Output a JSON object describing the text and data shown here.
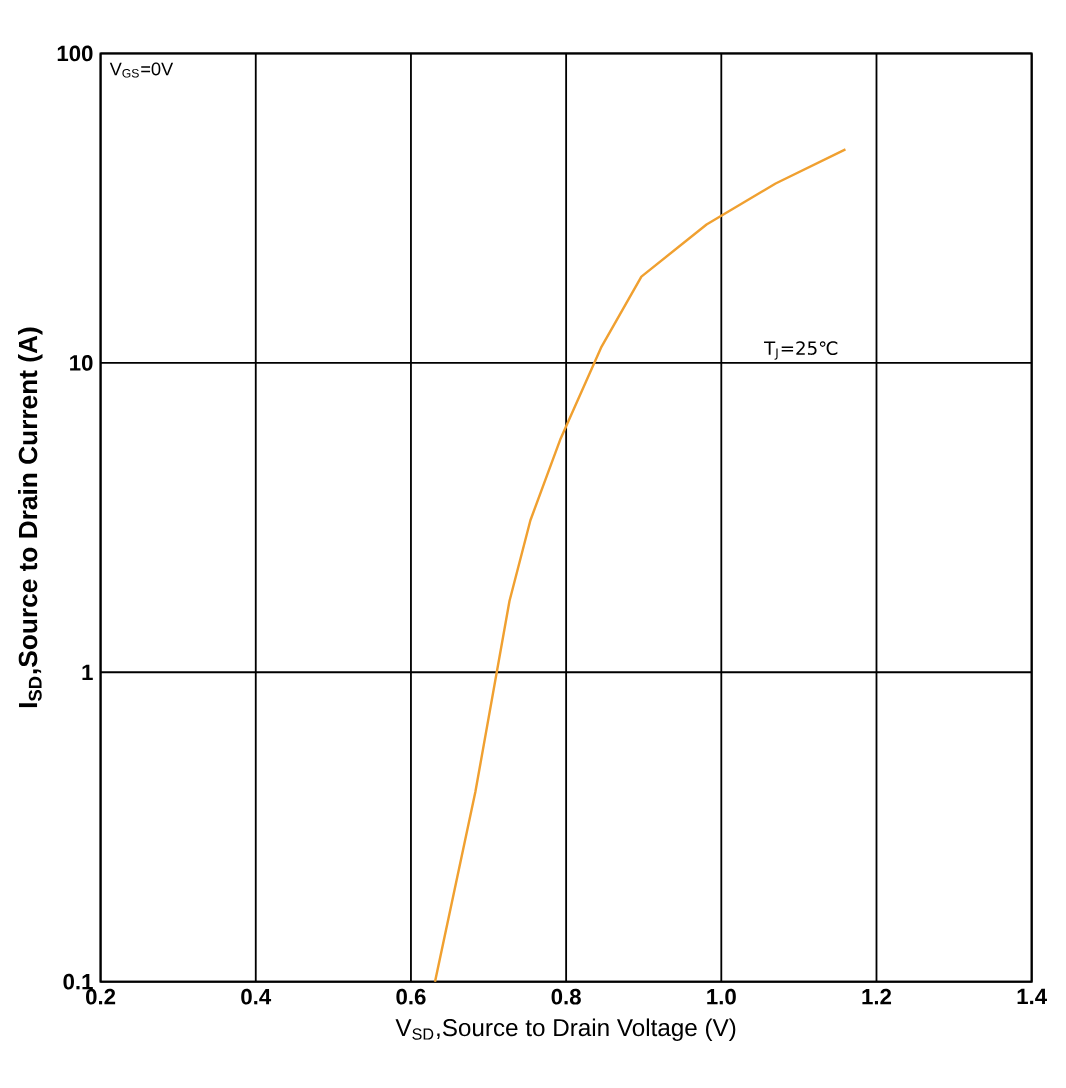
{
  "chart_data": {
    "type": "line",
    "xlabel": "V$_{SD}$,Source to Drain Voltage (V)",
    "ylabel": "I$_{SD}$,Source to Drain Current (A)",
    "x": [
      0.631,
      0.683,
      0.727,
      0.754,
      0.793,
      0.845,
      0.897,
      0.981,
      1.07,
      1.16
    ],
    "series": [
      {
        "color": "#f0a030",
        "values": [
          0.1,
          0.41,
          1.7,
          3.1,
          5.7,
          11.2,
          19,
          28,
          38,
          49
        ]
      }
    ],
    "xlim": [
      0.2,
      1.4
    ],
    "ylim": [
      0.1,
      100
    ],
    "log": "y",
    "xticks": [
      0.2,
      0.4,
      0.6,
      0.8,
      {
        "value": 1.0,
        "label": "1.0"
      },
      1.2,
      1.4
    ],
    "yticks": [
      0.1,
      1,
      10,
      100
    ],
    "grid": true,
    "marker": "none",
    "line_style": "solid",
    "annotations": [
      "V$_{GS}$=0V",
      "T$_{J}$=25℃"
    ]
  }
}
